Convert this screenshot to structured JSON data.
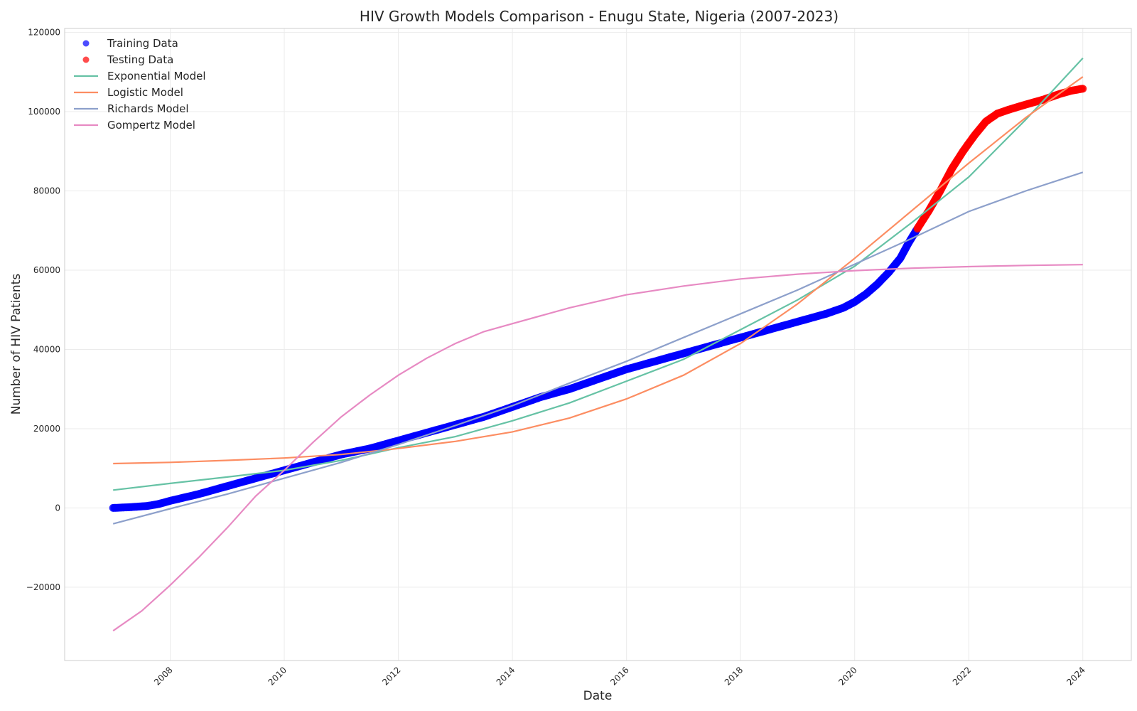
{
  "chart_data": {
    "type": "scatter",
    "title": "HIV Growth Models Comparison - Enugu State, Nigeria (2007-2023)",
    "xlabel": "Date",
    "ylabel": "Number of HIV Patients",
    "xlim": [
      2006.15,
      2024.85
    ],
    "ylim": [
      -38500,
      121000
    ],
    "x_ticks": [
      "2008",
      "2010",
      "2012",
      "2014",
      "2016",
      "2018",
      "2020",
      "2022",
      "2024"
    ],
    "y_ticks": [
      "−20000",
      "0",
      "20000",
      "40000",
      "60000",
      "80000",
      "100000",
      "120000"
    ],
    "grid": true,
    "legend_position": "top-left",
    "series": [
      {
        "name": "Training Data",
        "kind": "scatter",
        "color": "#0000ff",
        "points": [
          [
            2007.0,
            0
          ],
          [
            2007.3,
            200
          ],
          [
            2007.6,
            500
          ],
          [
            2007.8,
            1000
          ],
          [
            2008.0,
            1800
          ],
          [
            2008.5,
            3500
          ],
          [
            2009.0,
            5500
          ],
          [
            2009.5,
            7500
          ],
          [
            2010.0,
            9500
          ],
          [
            2010.5,
            11500
          ],
          [
            2011.0,
            13500
          ],
          [
            2011.5,
            15000
          ],
          [
            2012.0,
            17000
          ],
          [
            2012.5,
            19000
          ],
          [
            2013.0,
            21000
          ],
          [
            2013.5,
            23000
          ],
          [
            2014.0,
            25500
          ],
          [
            2014.5,
            28000
          ],
          [
            2015.0,
            30000
          ],
          [
            2015.5,
            32500
          ],
          [
            2016.0,
            35000
          ],
          [
            2016.5,
            37000
          ],
          [
            2017.0,
            39000
          ],
          [
            2017.5,
            41000
          ],
          [
            2018.0,
            43000
          ],
          [
            2018.5,
            45000
          ],
          [
            2019.0,
            47000
          ],
          [
            2019.5,
            49000
          ],
          [
            2019.8,
            50500
          ],
          [
            2020.0,
            52000
          ],
          [
            2020.2,
            54000
          ],
          [
            2020.4,
            56500
          ],
          [
            2020.6,
            59500
          ],
          [
            2020.8,
            63000
          ],
          [
            2020.95,
            67000
          ],
          [
            2021.1,
            70500
          ]
        ]
      },
      {
        "name": "Testing Data",
        "kind": "scatter",
        "color": "#ff0000",
        "points": [
          [
            2021.1,
            70500
          ],
          [
            2021.3,
            75000
          ],
          [
            2021.5,
            80000
          ],
          [
            2021.7,
            85500
          ],
          [
            2021.9,
            90000
          ],
          [
            2022.1,
            94000
          ],
          [
            2022.3,
            97500
          ],
          [
            2022.5,
            99500
          ],
          [
            2022.7,
            100500
          ],
          [
            2023.0,
            101800
          ],
          [
            2023.3,
            103000
          ],
          [
            2023.6,
            104500
          ],
          [
            2023.8,
            105300
          ],
          [
            2024.0,
            105800
          ]
        ]
      },
      {
        "name": "Exponential Model",
        "kind": "line",
        "color": "#66c2a5",
        "points": [
          [
            2007,
            4500
          ],
          [
            2008,
            6200
          ],
          [
            2009,
            7800
          ],
          [
            2010,
            9500
          ],
          [
            2011,
            12000
          ],
          [
            2012,
            15200
          ],
          [
            2013,
            18000
          ],
          [
            2014,
            22000
          ],
          [
            2015,
            26500
          ],
          [
            2016,
            32000
          ],
          [
            2017,
            37500
          ],
          [
            2018,
            45000
          ],
          [
            2019,
            52500
          ],
          [
            2020,
            61000
          ],
          [
            2021,
            72000
          ],
          [
            2022,
            83500
          ],
          [
            2023,
            98000
          ],
          [
            2024,
            113500
          ]
        ]
      },
      {
        "name": "Logistic Model",
        "kind": "line",
        "color": "#fc8d62",
        "points": [
          [
            2007,
            11200
          ],
          [
            2008,
            11500
          ],
          [
            2009,
            12000
          ],
          [
            2010,
            12600
          ],
          [
            2011,
            13500
          ],
          [
            2012,
            15000
          ],
          [
            2013,
            16800
          ],
          [
            2014,
            19200
          ],
          [
            2015,
            22700
          ],
          [
            2016,
            27500
          ],
          [
            2017,
            33500
          ],
          [
            2018,
            41500
          ],
          [
            2019,
            51500
          ],
          [
            2020,
            63000
          ],
          [
            2021,
            75000
          ],
          [
            2022,
            87000
          ],
          [
            2023,
            98500
          ],
          [
            2024,
            108800
          ]
        ]
      },
      {
        "name": "Richards Model",
        "kind": "line",
        "color": "#8da0cb",
        "points": [
          [
            2007,
            -4000
          ],
          [
            2008,
            -200
          ],
          [
            2009,
            3500
          ],
          [
            2010,
            7500
          ],
          [
            2011,
            11500
          ],
          [
            2012,
            16000
          ],
          [
            2013,
            20800
          ],
          [
            2014,
            25800
          ],
          [
            2015,
            31500
          ],
          [
            2016,
            37000
          ],
          [
            2017,
            43000
          ],
          [
            2018,
            49000
          ],
          [
            2019,
            55000
          ],
          [
            2020,
            61500
          ],
          [
            2021,
            68000
          ],
          [
            2022,
            74800
          ],
          [
            2023,
            80000
          ],
          [
            2024,
            84700
          ]
        ]
      },
      {
        "name": "Gompertz Model",
        "kind": "line",
        "color": "#e78ac3",
        "points": [
          [
            2007,
            -31000
          ],
          [
            2007.5,
            -26000
          ],
          [
            2008,
            -19500
          ],
          [
            2008.5,
            -12500
          ],
          [
            2009,
            -5000
          ],
          [
            2009.5,
            3000
          ],
          [
            2010,
            9500
          ],
          [
            2010.5,
            16500
          ],
          [
            2011,
            23000
          ],
          [
            2011.5,
            28500
          ],
          [
            2012,
            33500
          ],
          [
            2012.5,
            37800
          ],
          [
            2013,
            41500
          ],
          [
            2013.5,
            44500
          ],
          [
            2014,
            46500
          ],
          [
            2015,
            50500
          ],
          [
            2016,
            53800
          ],
          [
            2017,
            56000
          ],
          [
            2018,
            57800
          ],
          [
            2019,
            59000
          ],
          [
            2020,
            59900
          ],
          [
            2021,
            60500
          ],
          [
            2022,
            60900
          ],
          [
            2023,
            61200
          ],
          [
            2024,
            61400
          ]
        ]
      }
    ]
  }
}
